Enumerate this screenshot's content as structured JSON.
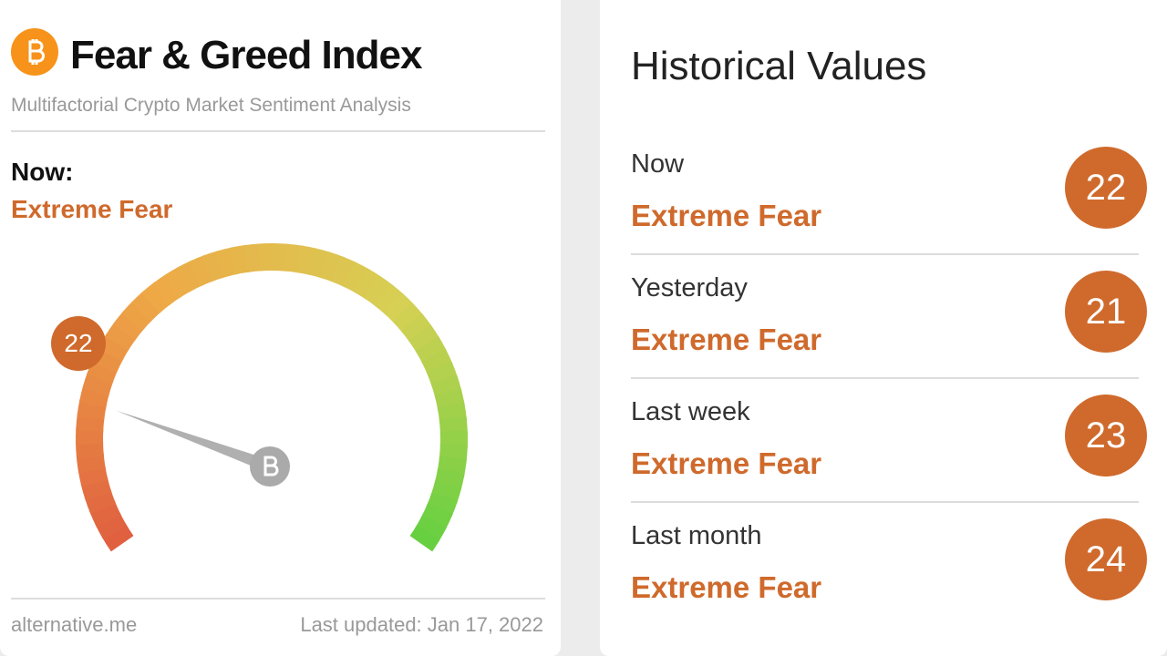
{
  "header": {
    "title": "Fear & Greed Index",
    "subtitle": "Multifactorial Crypto Market Sentiment Analysis"
  },
  "current": {
    "label": "Now:",
    "classification": "Extreme Fear",
    "value": 22
  },
  "footer": {
    "source": "alternative.me",
    "updated": "Last updated: Jan 17, 2022"
  },
  "history": {
    "title": "Historical Values",
    "rows": [
      {
        "period": "Now",
        "classification": "Extreme Fear",
        "value": 22
      },
      {
        "period": "Yesterday",
        "classification": "Extreme Fear",
        "value": 21
      },
      {
        "period": "Last week",
        "classification": "Extreme Fear",
        "value": 23
      },
      {
        "period": "Last month",
        "classification": "Extreme Fear",
        "value": 24
      }
    ]
  }
}
